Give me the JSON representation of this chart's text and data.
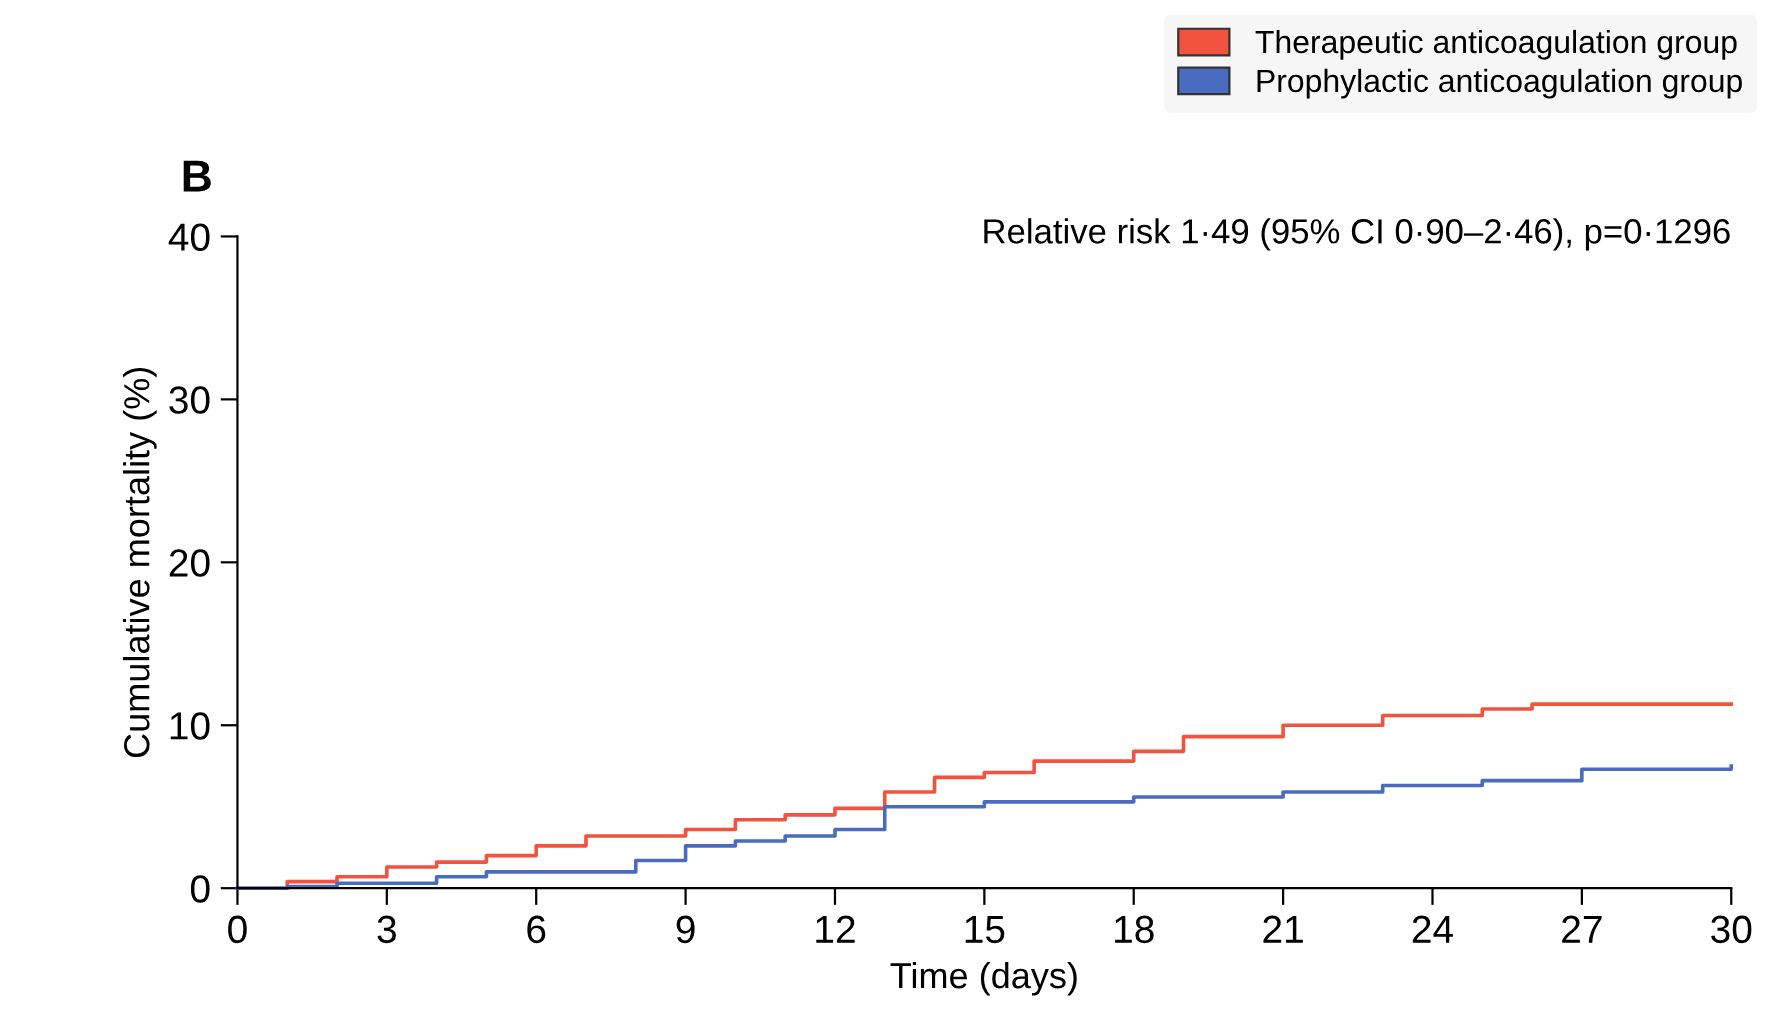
{
  "chart_data": {
    "type": "step",
    "title": "B",
    "xlabel": "Time (days)",
    "ylabel": "Cumulative mortality (%)",
    "annotations": [
      "Relative risk 1·49 (95% CI 0·90–2·46), p=0·1296"
    ],
    "series": [
      {
        "name": "Therapeutic anticoagulation group",
        "color": "#f2533e",
        "x": [
          0,
          1,
          2,
          3,
          4,
          5,
          6,
          7,
          9,
          10,
          11,
          12,
          13,
          14,
          15,
          16,
          18,
          19,
          21,
          23,
          25,
          26,
          30
        ],
        "values": [
          0,
          0.4,
          0.7,
          1.3,
          1.6,
          2.0,
          2.6,
          3.2,
          3.6,
          4.2,
          4.5,
          4.9,
          5.9,
          6.8,
          7.1,
          7.8,
          8.4,
          9.3,
          10.0,
          10.6,
          11.0,
          11.3,
          11.3
        ]
      },
      {
        "name": "Prophylactic anticoagulation group",
        "color": "#4a6cc0",
        "x": [
          0,
          1,
          2,
          4,
          5,
          8,
          9,
          10,
          11,
          12,
          13,
          15,
          18,
          21,
          23,
          25,
          27,
          30
        ],
        "values": [
          0,
          0.1,
          0.3,
          0.7,
          1.0,
          1.7,
          2.6,
          2.9,
          3.2,
          3.6,
          5.0,
          5.3,
          5.6,
          5.9,
          6.3,
          6.6,
          7.3,
          7.5
        ]
      }
    ],
    "xlim": [
      0,
      30
    ],
    "xticks": [
      0,
      3,
      6,
      9,
      12,
      15,
      18,
      21,
      24,
      27,
      30
    ],
    "ylim": [
      0,
      40
    ],
    "yticks": [
      0,
      10,
      20,
      30,
      40
    ],
    "legend": "top right",
    "grid": false
  }
}
